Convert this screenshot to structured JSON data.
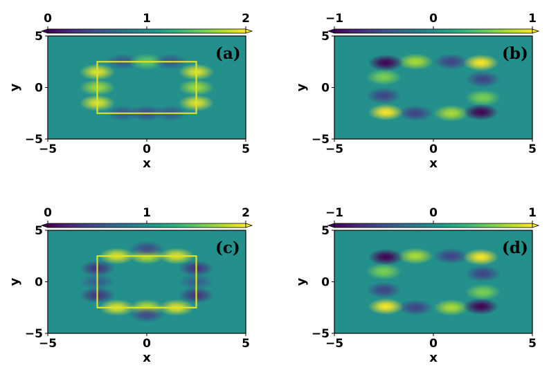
{
  "colors": {
    "colormap": [
      "#440154",
      "#482878",
      "#3e4989",
      "#31688e",
      "#26828e",
      "#1f9e89",
      "#35b779",
      "#6ece58",
      "#b5de2b",
      "#fde725"
    ],
    "background_value_color": "#2a8c8b",
    "axis": "#000000"
  },
  "chart_data": [
    {
      "type": "heatmap",
      "panel_label": "(a)",
      "xlabel": "x",
      "ylabel": "y",
      "xlim": [
        -5,
        5
      ],
      "ylim": [
        -5,
        5
      ],
      "xticks": [
        "−5",
        "0",
        "5"
      ],
      "yticks": [
        "−5",
        "0",
        "5"
      ],
      "colorbar": {
        "range": [
          0,
          2
        ],
        "ticks": [
          "0",
          "1",
          "2"
        ],
        "ticks_values": [
          0,
          1,
          2
        ],
        "extend": "both",
        "position": "top"
      },
      "colormap": "viridis",
      "baseline": 1,
      "rectangle": {
        "x": [
          -2.5,
          2.5
        ],
        "y": [
          -2.5,
          2.5
        ]
      },
      "edge_lobes": [
        {
          "x": -1.2,
          "y": 2.5,
          "value": 0.55
        },
        {
          "x": 0,
          "y": 2.5,
          "value": 1.5
        },
        {
          "x": 1.2,
          "y": 2.5,
          "value": 0.55
        },
        {
          "x": -1.2,
          "y": -2.5,
          "value": 0.55
        },
        {
          "x": 0,
          "y": -2.5,
          "value": 0.45
        },
        {
          "x": 1.2,
          "y": -2.5,
          "value": 0.55
        },
        {
          "x": -2.5,
          "y": 1.5,
          "value": 1.9
        },
        {
          "x": -2.5,
          "y": 0,
          "value": 1.7
        },
        {
          "x": -2.5,
          "y": -1.5,
          "value": 1.9
        },
        {
          "x": 2.5,
          "y": 1.5,
          "value": 1.9
        },
        {
          "x": 2.5,
          "y": 0,
          "value": 1.7
        },
        {
          "x": 2.5,
          "y": -1.5,
          "value": 1.9
        }
      ],
      "rect_outline_value": 1.9
    },
    {
      "type": "heatmap",
      "panel_label": "(b)",
      "xlabel": "x",
      "ylabel": "y",
      "xlim": [
        -5,
        5
      ],
      "ylim": [
        -5,
        5
      ],
      "xticks": [
        "−5",
        "0",
        "5"
      ],
      "yticks": [
        "−5",
        "0",
        "5"
      ],
      "colorbar": {
        "range": [
          -1,
          1
        ],
        "ticks": [
          "−1",
          "0",
          "1"
        ],
        "ticks_values": [
          -1,
          0,
          1
        ],
        "extend": "both",
        "position": "top"
      },
      "colormap": "viridis",
      "baseline": 0,
      "rectangle": {
        "x": [
          -2.5,
          2.5
        ],
        "y": [
          -2.5,
          2.5
        ]
      },
      "edge_lobes": [
        {
          "x": -0.9,
          "y": 2.5,
          "value": 0.75
        },
        {
          "x": 0.9,
          "y": 2.5,
          "value": -0.6
        },
        {
          "x": -0.9,
          "y": -2.5,
          "value": -0.6
        },
        {
          "x": 0.9,
          "y": -2.5,
          "value": 0.75
        },
        {
          "x": -2.5,
          "y": 1.0,
          "value": 0.6
        },
        {
          "x": -2.5,
          "y": -0.8,
          "value": -0.6
        },
        {
          "x": 2.5,
          "y": 0.8,
          "value": -0.6
        },
        {
          "x": 2.5,
          "y": -1.0,
          "value": 0.6
        },
        {
          "x": -2.4,
          "y": 2.4,
          "value": -1.0
        },
        {
          "x": 2.4,
          "y": 2.4,
          "value": 1.0
        },
        {
          "x": -2.4,
          "y": -2.4,
          "value": 1.0
        },
        {
          "x": 2.4,
          "y": -2.4,
          "value": -1.0
        }
      ],
      "rect_outline_value": null
    },
    {
      "type": "heatmap",
      "panel_label": "(c)",
      "xlabel": "x",
      "ylabel": "y",
      "xlim": [
        -5,
        5
      ],
      "ylim": [
        -5,
        5
      ],
      "xticks": [
        "−5",
        "0",
        "5"
      ],
      "yticks": [
        "−5",
        "0",
        "5"
      ],
      "colorbar": {
        "range": [
          0,
          2
        ],
        "ticks": [
          "0",
          "1",
          "2"
        ],
        "ticks_values": [
          0,
          1,
          2
        ],
        "extend": "both",
        "position": "top"
      },
      "colormap": "viridis",
      "baseline": 1,
      "rectangle": {
        "x": [
          -2.5,
          2.5
        ],
        "y": [
          -2.5,
          2.5
        ]
      },
      "edge_lobes": [
        {
          "x": -1.5,
          "y": 2.5,
          "value": 1.9
        },
        {
          "x": 0,
          "y": 2.5,
          "value": 1.8
        },
        {
          "x": 1.5,
          "y": 2.5,
          "value": 1.9
        },
        {
          "x": -1.5,
          "y": -2.5,
          "value": 1.9
        },
        {
          "x": 0,
          "y": -2.5,
          "value": 1.8
        },
        {
          "x": 1.5,
          "y": -2.5,
          "value": 1.9
        },
        {
          "x": -2.5,
          "y": 1.3,
          "value": 0.3
        },
        {
          "x": -2.5,
          "y": 0,
          "value": 0.6
        },
        {
          "x": -2.5,
          "y": -1.3,
          "value": 0.3
        },
        {
          "x": 2.5,
          "y": 1.3,
          "value": 0.3
        },
        {
          "x": 2.5,
          "y": 0,
          "value": 0.6
        },
        {
          "x": 2.5,
          "y": -1.3,
          "value": 0.3
        },
        {
          "x": 0,
          "y": 3.2,
          "value": 0.45
        },
        {
          "x": 0,
          "y": -3.2,
          "value": 0.45
        }
      ],
      "rect_outline_value": 1.9
    },
    {
      "type": "heatmap",
      "panel_label": "(d)",
      "xlabel": "x",
      "ylabel": "y",
      "xlim": [
        -5,
        5
      ],
      "ylim": [
        -5,
        5
      ],
      "xticks": [
        "−5",
        "0",
        "5"
      ],
      "yticks": [
        "−5",
        "0",
        "5"
      ],
      "colorbar": {
        "range": [
          -1,
          1
        ],
        "ticks": [
          "−1",
          "0",
          "1"
        ],
        "ticks_values": [
          -1,
          0,
          1
        ],
        "extend": "both",
        "position": "top"
      },
      "colormap": "viridis",
      "baseline": 0,
      "rectangle": {
        "x": [
          -2.5,
          2.5
        ],
        "y": [
          -2.5,
          2.5
        ]
      },
      "edge_lobes": [
        {
          "x": -0.9,
          "y": 2.5,
          "value": 0.75
        },
        {
          "x": 0.9,
          "y": 2.5,
          "value": -0.6
        },
        {
          "x": -0.9,
          "y": -2.5,
          "value": -0.6
        },
        {
          "x": 0.9,
          "y": -2.5,
          "value": 0.75
        },
        {
          "x": -2.5,
          "y": 1.0,
          "value": 0.6
        },
        {
          "x": -2.5,
          "y": -0.8,
          "value": -0.6
        },
        {
          "x": 2.5,
          "y": 0.8,
          "value": -0.6
        },
        {
          "x": 2.5,
          "y": -1.0,
          "value": 0.6
        },
        {
          "x": -2.4,
          "y": 2.4,
          "value": -1.0
        },
        {
          "x": 2.4,
          "y": 2.4,
          "value": 1.0
        },
        {
          "x": -2.4,
          "y": -2.4,
          "value": 1.0
        },
        {
          "x": 2.4,
          "y": -2.4,
          "value": -1.0
        }
      ],
      "rect_outline_value": null
    }
  ]
}
